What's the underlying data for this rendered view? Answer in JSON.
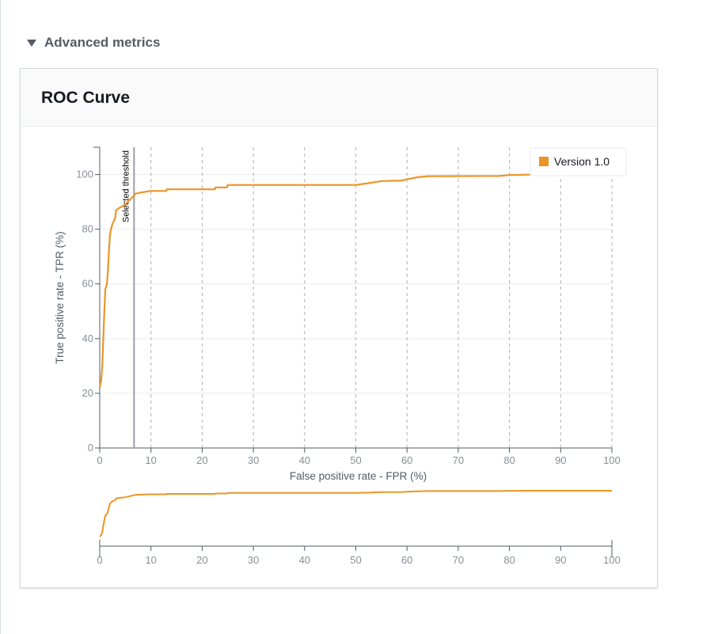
{
  "section": {
    "title": "Advanced metrics"
  },
  "panel": {
    "title": "ROC Curve"
  },
  "chart_data": {
    "type": "line",
    "title": "ROC Curve",
    "xlabel": "False positive rate - FPR (%)",
    "ylabel": "True positive rate - TPR (%)",
    "xlim": [
      0,
      100
    ],
    "ylim": [
      0,
      110
    ],
    "x_ticks": [
      0,
      10,
      20,
      30,
      40,
      50,
      60,
      70,
      80,
      90,
      100
    ],
    "y_ticks": [
      0,
      20,
      40,
      60,
      80,
      100
    ],
    "grid": {
      "x": "dashed",
      "y": "solid-light"
    },
    "legend_position": "top-right",
    "selected_threshold": {
      "label": "Selected threshold",
      "fpr": 6.7
    },
    "series": [
      {
        "name": "Version 1.0",
        "color": "#ec9425",
        "points": [
          [
            0.0,
            22
          ],
          [
            0.3,
            25
          ],
          [
            0.5,
            30
          ],
          [
            0.7,
            40
          ],
          [
            0.9,
            50
          ],
          [
            1.1,
            58
          ],
          [
            1.4,
            60
          ],
          [
            1.6,
            65
          ],
          [
            1.8,
            72
          ],
          [
            2.0,
            78
          ],
          [
            2.2,
            80
          ],
          [
            2.5,
            82
          ],
          [
            3.0,
            84
          ],
          [
            3.2,
            87
          ],
          [
            4.0,
            88
          ],
          [
            5.0,
            89
          ],
          [
            6.0,
            91
          ],
          [
            6.5,
            92
          ],
          [
            7.0,
            93
          ],
          [
            8.0,
            93.4
          ],
          [
            9.8,
            94
          ],
          [
            13.0,
            94
          ],
          [
            13.1,
            94.6
          ],
          [
            22.5,
            94.6
          ],
          [
            22.6,
            95.3
          ],
          [
            24.8,
            95.3
          ],
          [
            25.0,
            96.2
          ],
          [
            50.0,
            96.2
          ],
          [
            52.0,
            96.7
          ],
          [
            55.0,
            97.6
          ],
          [
            59.0,
            97.8
          ],
          [
            60.0,
            98.3
          ],
          [
            62.0,
            99.0
          ],
          [
            64.0,
            99.4
          ],
          [
            78.0,
            99.5
          ],
          [
            80.0,
            99.8
          ],
          [
            85.0,
            100
          ],
          [
            100.0,
            100
          ]
        ]
      }
    ]
  },
  "overview": {
    "x_ticks": [
      0,
      10,
      20,
      30,
      40,
      50,
      60,
      70,
      80,
      90,
      100
    ]
  }
}
